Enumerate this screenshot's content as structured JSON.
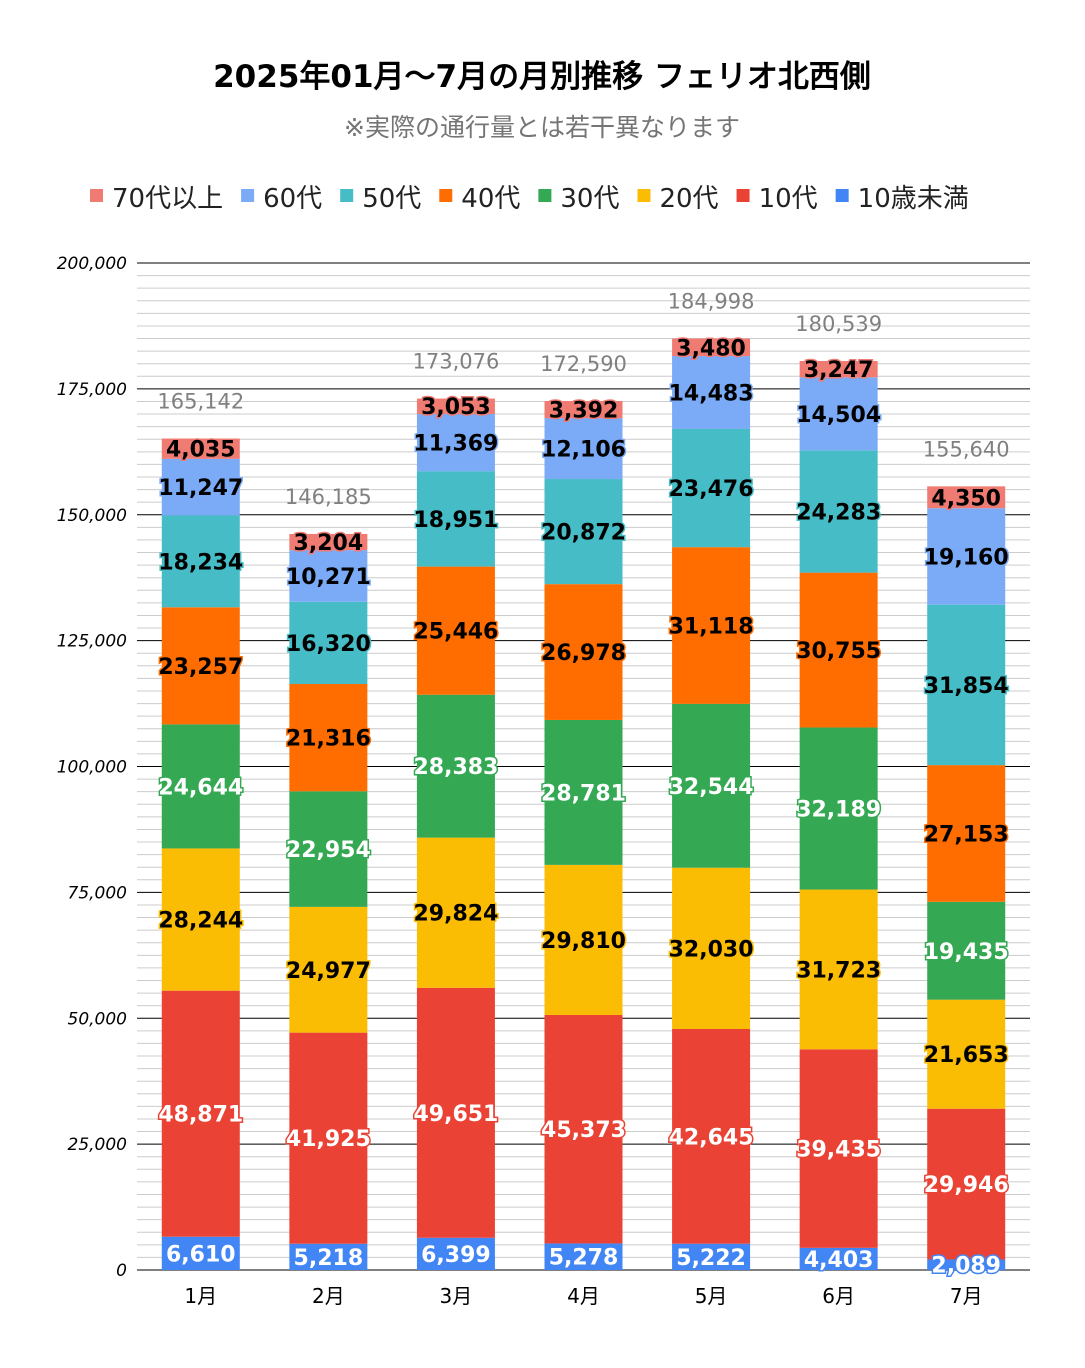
{
  "chart_data": {
    "type": "bar",
    "stacked": true,
    "title": "2025年01月～7月の月別推移  フェリオ北西側",
    "subtitle": "※実際の通行量とは若干異なります",
    "xlabel": "",
    "ylabel": "",
    "ylim": [
      0,
      200000
    ],
    "yticks": [
      "0",
      "25,000",
      "50,000",
      "75,000",
      "100,000",
      "125,000",
      "150,000",
      "175,000",
      "200,000"
    ],
    "grid": true,
    "legend_position": "top",
    "categories": [
      "1月",
      "2月",
      "3月",
      "4月",
      "5月",
      "6月",
      "7月"
    ],
    "totals": [
      165142,
      146185,
      173076,
      172590,
      184998,
      180539,
      155640
    ],
    "total_labels": [
      "165,142",
      "146,185",
      "173,076",
      "172,590",
      "184,998",
      "180,539",
      "155,640"
    ],
    "series": [
      {
        "name": "10歳未満",
        "color": "#4285f4",
        "values": [
          6610,
          5218,
          6399,
          5278,
          5222,
          4403,
          2089
        ]
      },
      {
        "name": "10代",
        "color": "#ea4335",
        "values": [
          48871,
          41925,
          49651,
          45373,
          42645,
          39435,
          29946
        ]
      },
      {
        "name": "20代",
        "color": "#fbbc04",
        "values": [
          28244,
          24977,
          29824,
          29810,
          32030,
          31723,
          21653
        ]
      },
      {
        "name": "30代",
        "color": "#34a853",
        "values": [
          24644,
          22954,
          28383,
          28781,
          32544,
          32189,
          19435
        ]
      },
      {
        "name": "40代",
        "color": "#ff6d01",
        "values": [
          23257,
          21316,
          25446,
          26978,
          31118,
          30755,
          27153
        ]
      },
      {
        "name": "50代",
        "color": "#46bdc6",
        "values": [
          18234,
          16320,
          18951,
          20872,
          23476,
          24283,
          31854
        ]
      },
      {
        "name": "60代",
        "color": "#7baaf7",
        "values": [
          11247,
          10271,
          11369,
          12106,
          14483,
          14504,
          19160
        ]
      },
      {
        "name": "70代以上",
        "color": "#f07b72",
        "values": [
          4035,
          3204,
          3053,
          3392,
          3480,
          3247,
          4350
        ]
      }
    ],
    "legend_order": [
      "70代以上",
      "60代",
      "50代",
      "40代",
      "30代",
      "20代",
      "10代",
      "10歳未満"
    ],
    "white_label_series": [
      "10歳未満",
      "10代",
      "30代"
    ]
  }
}
